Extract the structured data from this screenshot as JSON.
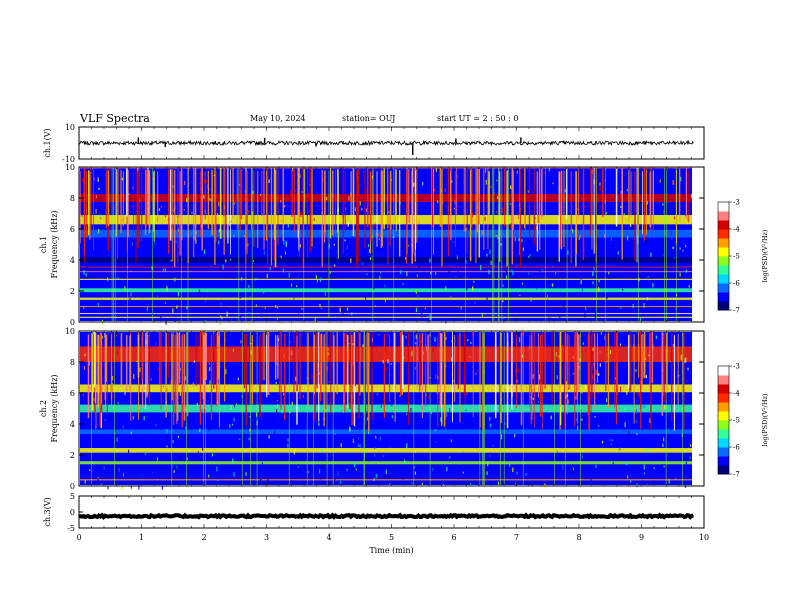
{
  "header": {
    "title": "VLF Spectra",
    "date": "May 10, 2024",
    "station": "station= OUJ",
    "start_ut": "start  UT =   2  : 50 : 0"
  },
  "colors": {
    "colormap": [
      "#00007a",
      "#0000ff",
      "#0a6cff",
      "#00d8ff",
      "#33ff9a",
      "#8cff1a",
      "#ffff00",
      "#ffa000",
      "#ff2a00",
      "#d40000",
      "#ff8080",
      "#ffffff"
    ],
    "trace": "#000000",
    "axis": "#000000"
  },
  "chart_data": [
    {
      "type": "line",
      "name": "ch1-waveform",
      "ylabel": "ch.1(V)",
      "ylim": [
        -10,
        10
      ],
      "yticks": [
        {
          "v": 10,
          "t": "10"
        },
        {
          "v": -10,
          "t": "-10"
        }
      ],
      "xlim": [
        0,
        10
      ],
      "baseline": 0,
      "noise_amplitude": 1.2,
      "spikes": [
        {
          "x": 0.95,
          "y": 3.5
        },
        {
          "x": 1.38,
          "y": -2.5
        },
        {
          "x": 2.97,
          "y": 3.2
        },
        {
          "x": 3.79,
          "y": -2.2
        },
        {
          "x": 5.34,
          "y": -7.5
        },
        {
          "x": 6.03,
          "y": 2.8
        },
        {
          "x": 7.07,
          "y": 3.5
        }
      ]
    },
    {
      "type": "heatmap",
      "name": "ch1-spectrogram",
      "ylabel1": "ch.1",
      "ylabel2": "Frequency  (kHz)",
      "ylim": [
        0,
        10
      ],
      "yticks": [
        0,
        2,
        4,
        6,
        8,
        10
      ],
      "xlim": [
        0,
        9.83
      ],
      "colorbar": {
        "label": "log(PSD)(V²/Hz)",
        "range": [
          -7,
          -3
        ],
        "ticks": [
          "-3",
          "-4",
          "-5",
          "-6",
          "-7"
        ]
      },
      "bands_khz": [
        {
          "f": 10.0,
          "w": 0.18,
          "v": -3.6
        },
        {
          "f": 8.0,
          "w": 0.5,
          "v": -4.0
        },
        {
          "f": 6.6,
          "w": 0.6,
          "v": -4.8
        },
        {
          "f": 5.7,
          "w": 0.5,
          "v": -6.1
        },
        {
          "f": 4.0,
          "w": 0.35,
          "v": -6.7
        },
        {
          "f": 3.25,
          "w": 0.06,
          "v": -3.4
        },
        {
          "f": 3.55,
          "w": 0.06,
          "v": -4.2
        },
        {
          "f": 2.75,
          "w": 0.08,
          "v": -4.9
        },
        {
          "f": 2.05,
          "w": 0.25,
          "v": -5.6
        },
        {
          "f": 1.5,
          "w": 0.15,
          "v": -4.9
        },
        {
          "f": 1.0,
          "w": 0.06,
          "v": -4.6
        },
        {
          "f": 0.55,
          "w": 0.05,
          "v": -3.3
        },
        {
          "f": 0.3,
          "w": 0.08,
          "v": -4.7
        }
      ]
    },
    {
      "type": "heatmap",
      "name": "ch2-spectrogram",
      "ylabel1": "ch.2",
      "ylabel2": "Frequency  (kHz)",
      "ylim": [
        0,
        10
      ],
      "yticks": [
        0,
        2,
        4,
        6,
        8,
        10
      ],
      "xlim": [
        0,
        9.83
      ],
      "colorbar": {
        "label": "log(PSD)(V²/Hz)",
        "range": [
          -7,
          -3
        ],
        "ticks": [
          "-3",
          "-4",
          "-5",
          "-6",
          "-7"
        ]
      },
      "bands_khz": [
        {
          "f": 8.5,
          "w": 1.0,
          "v": -4.1
        },
        {
          "f": 6.3,
          "w": 0.5,
          "v": -4.7
        },
        {
          "f": 5.0,
          "w": 0.5,
          "v": -5.4
        },
        {
          "f": 3.5,
          "w": 0.3,
          "v": -6.2
        },
        {
          "f": 2.3,
          "w": 0.3,
          "v": -5.0
        },
        {
          "f": 1.5,
          "w": 0.2,
          "v": -5.3
        },
        {
          "f": 0.4,
          "w": 0.08,
          "v": -4.5
        }
      ]
    },
    {
      "type": "line",
      "name": "ch3-waveform",
      "ylabel": "ch.3(V)",
      "ylim": [
        -5,
        5
      ],
      "yticks": [
        {
          "v": 5,
          "t": "5"
        },
        {
          "v": 0,
          "t": "0"
        },
        {
          "v": -5,
          "t": "-5"
        }
      ],
      "xlim": [
        0,
        10
      ],
      "baseline": -1.3,
      "noise_amplitude": 0.3
    }
  ],
  "time_axis": {
    "xlabel": "Time  (min)",
    "xlim": [
      0,
      10
    ],
    "ticks": [
      "0",
      "1",
      "2",
      "3",
      "4",
      "5",
      "6",
      "7",
      "8",
      "9",
      "10"
    ]
  }
}
